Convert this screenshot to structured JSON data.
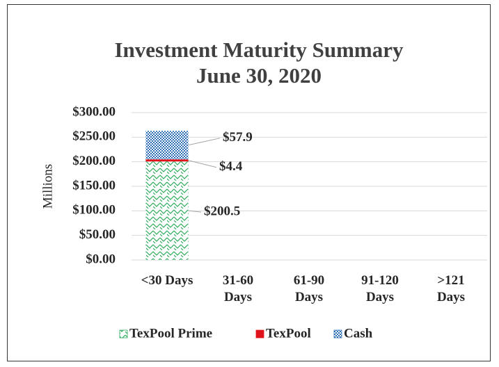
{
  "chart_data": {
    "type": "stacked_bar",
    "title": "Investment Maturity Summary",
    "subtitle": "June 30, 2020",
    "y_label": "Millions",
    "categories": [
      "<30 Days",
      "31-60 Days",
      "61-90 Days",
      "91-120 Days",
      ">121 Days"
    ],
    "series": [
      {
        "name": "TexPool Prime",
        "color": "#2eaa5c",
        "values": [
          200.5,
          0,
          0,
          0,
          0
        ],
        "value_labels": [
          "$200.5",
          null,
          null,
          null,
          null
        ]
      },
      {
        "name": "TexPool",
        "color": "#e0121b",
        "values": [
          4.4,
          0,
          0,
          0,
          0
        ],
        "value_labels": [
          "$4.4",
          null,
          null,
          null,
          null
        ]
      },
      {
        "name": "Cash",
        "color": "#2f6fb8",
        "values": [
          57.9,
          0,
          0,
          0,
          0
        ],
        "value_labels": [
          "$57.9",
          null,
          null,
          null,
          null
        ]
      }
    ],
    "ylim": [
      0,
      300
    ],
    "yticks": [
      {
        "value": 0,
        "label": "$0.00"
      },
      {
        "value": 50,
        "label": "$50.00"
      },
      {
        "value": 100,
        "label": "$100.00"
      },
      {
        "value": 150,
        "label": "$150.00"
      },
      {
        "value": 200,
        "label": "$200.00"
      },
      {
        "value": 250,
        "label": "$250.00"
      },
      {
        "value": 300,
        "label": "$300.00"
      }
    ],
    "grid": true,
    "legend": "bottom"
  }
}
